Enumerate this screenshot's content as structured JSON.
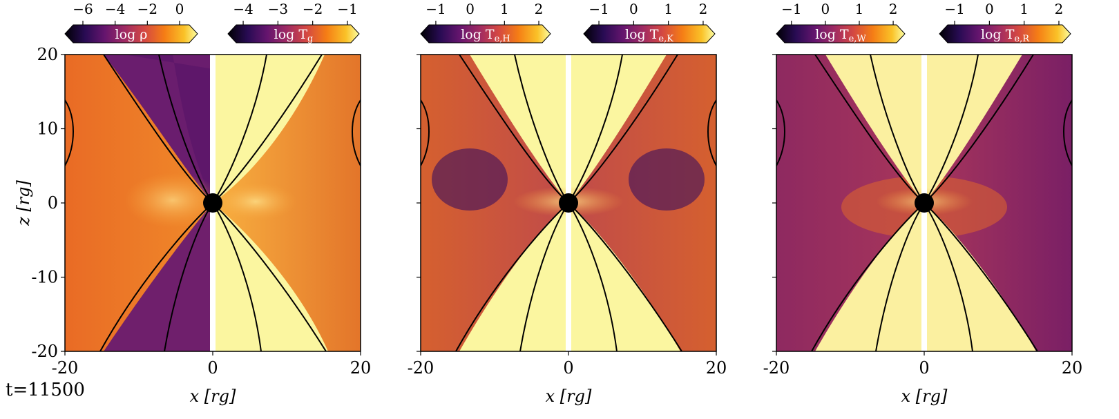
{
  "figure": {
    "time_label": "t=11500"
  },
  "chart_data": {
    "type": "heatmap",
    "description_of_axes": "shared",
    "x_axis": {
      "label": "x [r_g]",
      "ticks": [
        "-20",
        "0",
        "20"
      ],
      "xlim": [
        -20,
        20
      ]
    },
    "y_axis": {
      "label": "z [r_g]",
      "ticks": [
        "20",
        "10",
        "0",
        "-10",
        "-20"
      ],
      "ylim": [
        -20,
        20
      ]
    },
    "colormap": "inferno",
    "panels": [
      {
        "id": "panel-1",
        "left_half": {
          "quantity": "log ρ",
          "colorbar_ticks": [
            "−6",
            "−4",
            "−2",
            "0"
          ],
          "range": [
            -6.6,
            0.6
          ]
        },
        "right_half": {
          "quantity": "log T_g",
          "colorbar_ticks": [
            "−4",
            "−3",
            "−2",
            "−1"
          ],
          "range": [
            -4.2,
            -0.9
          ]
        }
      },
      {
        "id": "panel-2",
        "left_half": {
          "quantity": "log T_e,H",
          "colorbar_ticks": [
            "−1",
            "0",
            "1",
            "2"
          ],
          "range": [
            -1.2,
            2.1
          ]
        },
        "right_half": {
          "quantity": "log T_e,K",
          "colorbar_ticks": [
            "−1",
            "0",
            "1",
            "2"
          ],
          "range": [
            -1.2,
            2.1
          ]
        }
      },
      {
        "id": "panel-3",
        "left_half": {
          "quantity": "log T_e,W",
          "colorbar_ticks": [
            "−1",
            "0",
            "1",
            "2"
          ],
          "range": [
            -1.2,
            2.1
          ]
        },
        "right_half": {
          "quantity": "log T_e,R",
          "colorbar_ticks": [
            "−1",
            "0",
            "1",
            "2"
          ],
          "range": [
            -1.2,
            2.1
          ]
        }
      }
    ],
    "black_hole_radius": 1.3,
    "field_lines_present": true
  },
  "colors": {
    "inferno_dark": "#000004",
    "inferno_purple": "#57106e",
    "inferno_orange": "#f57d15",
    "inferno_light": "#fcffa4"
  }
}
